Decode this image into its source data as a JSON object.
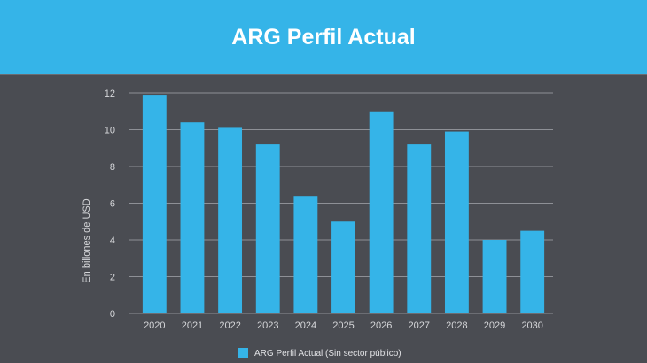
{
  "header": {
    "title": "ARG Perfil Actual"
  },
  "chart_data": {
    "type": "bar",
    "title": "ARG Perfil Actual",
    "xlabel": "",
    "ylabel": "En billones de USD",
    "categories": [
      "2020",
      "2021",
      "2022",
      "2023",
      "2024",
      "2025",
      "2026",
      "2027",
      "2028",
      "2029",
      "2030"
    ],
    "series": [
      {
        "name": "ARG Perfil Actual (Sin sector público)",
        "values": [
          11.9,
          10.4,
          10.1,
          9.2,
          6.4,
          5.0,
          11.0,
          9.2,
          9.9,
          4.0,
          4.5
        ]
      }
    ],
    "ylim": [
      0,
      12
    ],
    "yticks": [
      0,
      2,
      4,
      6,
      8,
      10,
      12
    ],
    "grid": true,
    "legend": "bottom-center",
    "colors": {
      "bar": "#35b4e8",
      "background": "#4a4c52",
      "header": "#35b4e8",
      "grid": "#8e9096"
    }
  }
}
